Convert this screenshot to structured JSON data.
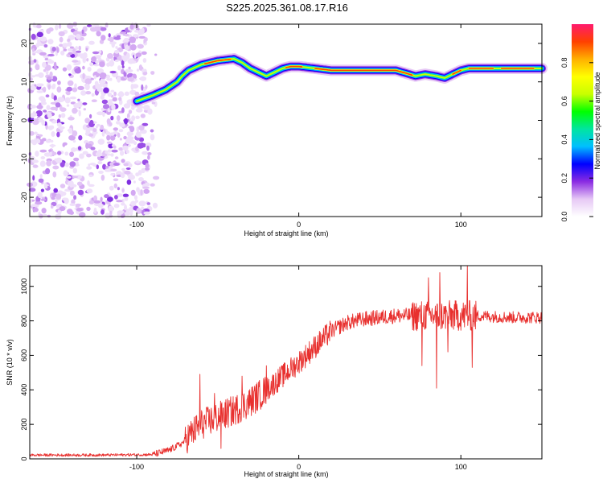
{
  "figure": {
    "title": "S225.2025.361.08.17.R16"
  },
  "chart_data": [
    {
      "type": "heatmap",
      "xlabel": "Height of straight line (km)",
      "ylabel": "Frequency (Hz)",
      "xlim": [
        -166,
        150
      ],
      "ylim": [
        -25,
        25
      ],
      "xticks": [
        -100,
        0,
        100
      ],
      "yticks": [
        -20,
        -10,
        0,
        10,
        20
      ],
      "colorbar": {
        "label": "Normalized spectral amplitude",
        "range": [
          0,
          1
        ],
        "ticks": [
          "0.0",
          "0.2",
          "0.4",
          "0.6",
          "0.8"
        ],
        "colors": [
          "#ffffff",
          "#e6c8f5",
          "#8a2be2",
          "#0000ff",
          "#00bfff",
          "#00e5a0",
          "#00ff00",
          "#c8ff00",
          "#ffff00",
          "#ffb000",
          "#ff4000",
          "#ff1a6e"
        ]
      },
      "ridge": {
        "height_km": [
          -100,
          -90,
          -82,
          -75,
          -72,
          -68,
          -60,
          -50,
          -40,
          -35,
          -30,
          -25,
          -20,
          -15,
          -10,
          -5,
          0,
          10,
          20,
          30,
          40,
          50,
          60,
          68,
          72,
          78,
          85,
          90,
          95,
          100,
          105,
          110,
          120,
          130,
          140,
          150
        ],
        "frequency_hz": [
          5,
          6.5,
          8,
          10,
          11.5,
          13,
          14.5,
          15.5,
          16,
          15,
          13.5,
          12.5,
          11.5,
          12.5,
          13.5,
          14,
          14,
          13.5,
          13,
          13,
          13,
          13,
          13,
          12,
          11.5,
          12,
          11.5,
          11,
          12,
          13,
          13.5,
          13.5,
          13.5,
          13.5,
          13.5,
          13.5
        ]
      },
      "noise_region_km": [
        -166,
        -86
      ]
    },
    {
      "type": "line",
      "xlabel": "Height of straight line (km)",
      "ylabel": "SNR (10 * v/v)",
      "xlim": [
        -166,
        150
      ],
      "ylim": [
        0,
        1120
      ],
      "xticks": [
        -100,
        0,
        100
      ],
      "yticks": [
        0,
        200,
        400,
        600,
        800,
        1000
      ],
      "color": "#e8302e",
      "envelope": {
        "x": [
          -166,
          -120,
          -90,
          -80,
          -72,
          -66,
          -60,
          -50,
          -40,
          -30,
          -20,
          -10,
          0,
          10,
          20,
          30,
          40,
          50,
          60,
          70,
          80,
          90,
          100,
          110,
          120,
          130,
          140,
          150
        ],
        "y": [
          22,
          22,
          25,
          50,
          90,
          150,
          200,
          240,
          280,
          330,
          400,
          480,
          560,
          650,
          740,
          790,
          810,
          820,
          830,
          830,
          830,
          830,
          830,
          830,
          825,
          820,
          820,
          820
        ]
      },
      "spikes": [
        {
          "x": -61,
          "y": 490
        },
        {
          "x": -52,
          "y": 380
        },
        {
          "x": -48,
          "y": 60
        },
        {
          "x": -35,
          "y": 480
        },
        {
          "x": -20,
          "y": 540
        },
        {
          "x": 76,
          "y": 540
        },
        {
          "x": 80,
          "y": 1050
        },
        {
          "x": 85,
          "y": 410
        },
        {
          "x": 87,
          "y": 1080
        },
        {
          "x": 92,
          "y": 620
        },
        {
          "x": 104,
          "y": 1120
        },
        {
          "x": 107,
          "y": 530
        }
      ]
    }
  ]
}
